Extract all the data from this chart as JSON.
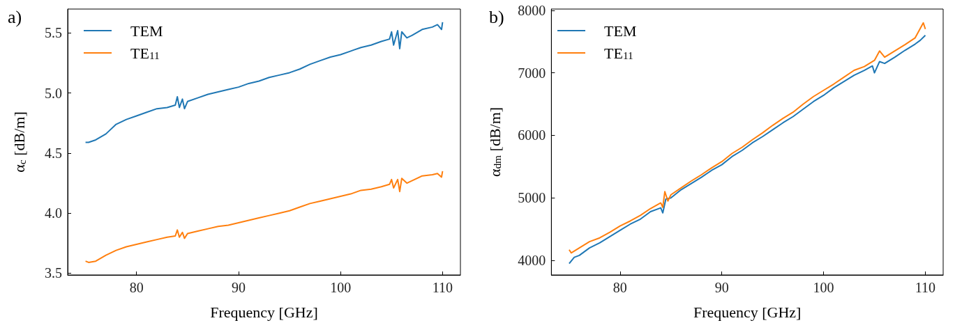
{
  "chart_data": [
    {
      "type": "line",
      "title": "a)",
      "xlabel": "Frequency [GHz]",
      "ylabel": "α$_{c}$ [dB/m]",
      "xlim": [
        73.25,
        111.75
      ],
      "xticks": [
        80,
        90,
        100,
        110
      ],
      "ylim": [
        3.485,
        5.7
      ],
      "yticks": [
        3.5,
        {
          "value": 4,
          "label": "4.0"
        },
        4.5,
        {
          "value": 5,
          "label": "5.0"
        },
        5.5
      ],
      "grid": false,
      "legend": "top left",
      "marker": "none",
      "line_style": "solid",
      "x": [
        75,
        75.3,
        76,
        77,
        78,
        79,
        80,
        81,
        82,
        83,
        83.8,
        84,
        84.2,
        84.5,
        84.7,
        85,
        86,
        87,
        88,
        89,
        90,
        91,
        92,
        93,
        94,
        95,
        96,
        97,
        98,
        99,
        100,
        101,
        102,
        103,
        104,
        104.8,
        105,
        105.2,
        105.6,
        105.8,
        106,
        106.5,
        107,
        108,
        109,
        109.5,
        109.9,
        110
      ],
      "series": [
        {
          "name": "TEM",
          "color": "#1f77b4",
          "values": [
            4.59,
            4.59,
            4.61,
            4.66,
            4.74,
            4.78,
            4.81,
            4.84,
            4.87,
            4.88,
            4.9,
            4.97,
            4.88,
            4.95,
            4.87,
            4.93,
            4.96,
            4.99,
            5.01,
            5.03,
            5.05,
            5.08,
            5.1,
            5.13,
            5.15,
            5.17,
            5.2,
            5.24,
            5.27,
            5.3,
            5.32,
            5.35,
            5.38,
            5.4,
            5.43,
            5.45,
            5.51,
            5.4,
            5.52,
            5.37,
            5.51,
            5.46,
            5.48,
            5.53,
            5.55,
            5.57,
            5.53,
            5.59
          ]
        },
        {
          "name": "TE$_{11}$",
          "color": "#ff7f0e",
          "values": [
            3.6,
            3.59,
            3.6,
            3.65,
            3.69,
            3.72,
            3.74,
            3.76,
            3.78,
            3.8,
            3.81,
            3.86,
            3.8,
            3.84,
            3.79,
            3.83,
            3.85,
            3.87,
            3.89,
            3.9,
            3.92,
            3.94,
            3.96,
            3.98,
            4.0,
            4.02,
            4.05,
            4.08,
            4.1,
            4.12,
            4.14,
            4.16,
            4.19,
            4.2,
            4.22,
            4.24,
            4.28,
            4.21,
            4.28,
            4.18,
            4.29,
            4.25,
            4.27,
            4.31,
            4.32,
            4.33,
            4.3,
            4.35
          ]
        }
      ]
    },
    {
      "type": "line",
      "title": "b)",
      "xlabel": "Frequency [GHz]",
      "ylabel": "α$_{dm}$ [dB/m]",
      "xlim": [
        73.25,
        111.75
      ],
      "xticks": [
        80,
        90,
        100,
        110
      ],
      "ylim": [
        3767,
        8020
      ],
      "yticks": [
        4000,
        5000,
        6000,
        7000,
        8000
      ],
      "grid": false,
      "legend": "top left",
      "marker": "none",
      "line_style": "solid",
      "series": [
        {
          "name": "TEM",
          "color": "#1f77b4",
          "x": [
            75,
            75.5,
            76,
            77,
            78,
            79,
            80,
            81,
            82,
            83,
            84,
            84.2,
            84.5,
            85,
            86,
            87,
            88,
            89,
            90,
            91,
            92,
            93,
            94,
            95,
            96,
            97,
            98,
            99,
            100,
            101,
            102,
            103,
            104,
            104.8,
            105,
            105.5,
            106,
            107,
            108,
            109,
            109.5,
            110
          ],
          "values": [
            3950,
            4050,
            4080,
            4200,
            4280,
            4380,
            4480,
            4580,
            4660,
            4780,
            4840,
            4760,
            4980,
            5000,
            5130,
            5230,
            5330,
            5440,
            5530,
            5660,
            5760,
            5880,
            5980,
            6090,
            6200,
            6300,
            6420,
            6540,
            6640,
            6760,
            6860,
            6960,
            7040,
            7110,
            7000,
            7180,
            7150,
            7250,
            7360,
            7460,
            7520,
            7600
          ]
        },
        {
          "name": "TE$_{11}$",
          "color": "#ff7f0e",
          "x": [
            75,
            75.2,
            76,
            77,
            78,
            79,
            80,
            81,
            82,
            83,
            84,
            84.2,
            84.4,
            84.7,
            85,
            86,
            87,
            88,
            89,
            90,
            91,
            92,
            93,
            94,
            95,
            96,
            97,
            98,
            99,
            100,
            101,
            102,
            103,
            104,
            105,
            105.5,
            106,
            107,
            108,
            109,
            109.8,
            110
          ],
          "values": [
            4170,
            4120,
            4200,
            4300,
            4360,
            4450,
            4550,
            4630,
            4720,
            4830,
            4920,
            4850,
            5100,
            4950,
            5050,
            5160,
            5270,
            5370,
            5480,
            5580,
            5710,
            5810,
            5930,
            6040,
            6160,
            6270,
            6370,
            6500,
            6620,
            6720,
            6820,
            6930,
            7040,
            7100,
            7200,
            7350,
            7250,
            7350,
            7450,
            7560,
            7800,
            7700
          ]
        }
      ]
    }
  ]
}
